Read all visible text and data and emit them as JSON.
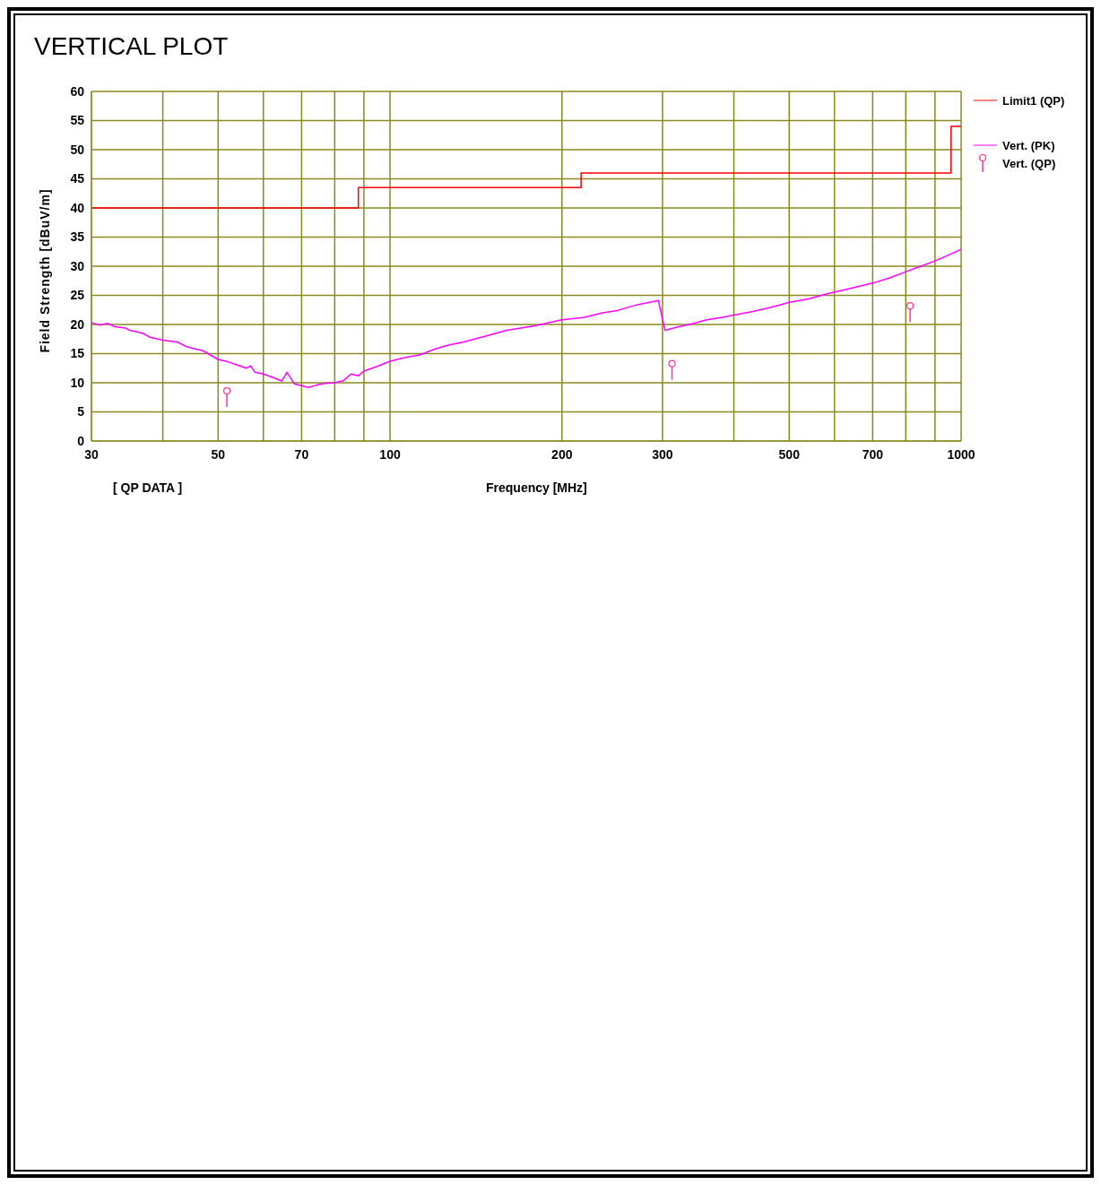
{
  "chart_data": {
    "type": "line",
    "title": "VERTICAL PLOT",
    "xlabel": "Frequency [MHz]",
    "ylabel": "Field Strength [dBuV/m]",
    "annotations": [
      "[ QP DATA ]"
    ],
    "log": "x",
    "grid": true,
    "legend": "top right",
    "xlim": [
      30,
      1000
    ],
    "xticks": [
      30,
      {
        "value": 40,
        "label": null
      },
      50,
      {
        "value": 60,
        "label": null
      },
      70,
      {
        "value": 80,
        "label": null
      },
      {
        "value": 90,
        "label": null
      },
      100,
      200,
      300,
      {
        "value": 400,
        "label": null
      },
      500,
      {
        "value": 600,
        "label": null
      },
      700,
      {
        "value": 800,
        "label": null
      },
      {
        "value": 900,
        "label": null
      },
      1000
    ],
    "ylim": [
      0,
      60
    ],
    "yticks": [
      0,
      5,
      10,
      15,
      20,
      25,
      30,
      35,
      40,
      45,
      50,
      55,
      60
    ],
    "series": [
      {
        "name": "Limit1 (QP)",
        "type": "step",
        "color": "#ff0000",
        "x": [
          30,
          88,
          216,
          960,
          1000
        ],
        "values": [
          40,
          43.5,
          46,
          54,
          54
        ]
      },
      {
        "name": "Vert. (PK)",
        "color": "#ff00ff",
        "x": [
          30,
          31,
          32,
          33,
          34.4,
          35,
          36.9,
          38,
          40,
          42.4,
          44,
          45.5,
          47,
          50,
          52,
          54.2,
          56,
          57,
          58,
          60,
          62,
          64.6,
          66,
          68,
          70,
          72,
          74.3,
          77,
          80,
          83,
          85.4,
          88,
          90,
          95,
          100,
          106,
          113,
          120,
          127,
          134.6,
          147,
          160,
          180,
          200,
          218,
          235.6,
          250,
          271,
          285,
          295,
          303,
          320,
          340,
          358.6,
          380,
          400,
          430,
          458,
          480,
          500,
          540,
          585,
          640,
          700,
          750,
          802,
          850,
          900,
          950,
          1000
        ],
        "values": [
          20.3,
          19.9,
          20.2,
          19.6,
          19.4,
          19,
          18.5,
          17.8,
          17.3,
          17,
          16.2,
          15.8,
          15.5,
          14,
          13.6,
          13,
          12.5,
          12.9,
          11.8,
          11.5,
          11,
          10.3,
          11.8,
          9.8,
          9.5,
          9.2,
          9.6,
          9.9,
          10,
          10.4,
          11.5,
          11.2,
          12,
          12.8,
          13.7,
          14.3,
          14.8,
          15.8,
          16.5,
          17,
          18,
          19,
          19.8,
          20.8,
          21.2,
          22,
          22.4,
          23.4,
          23.8,
          24.1,
          19,
          19.6,
          20.2,
          20.8,
          21.2,
          21.6,
          22.2,
          22.8,
          23.3,
          23.8,
          24.4,
          25.3,
          26.2,
          27.1,
          28,
          29.1,
          30,
          30.9,
          31.9,
          32.9
        ]
      },
      {
        "name": "Vert. (QP)",
        "type": "scatter",
        "color": "#ff3399",
        "marker": "circle",
        "x": [
          51.8,
          311.7,
          814
        ],
        "values": [
          8.6,
          13.3,
          23.2
        ]
      }
    ]
  }
}
